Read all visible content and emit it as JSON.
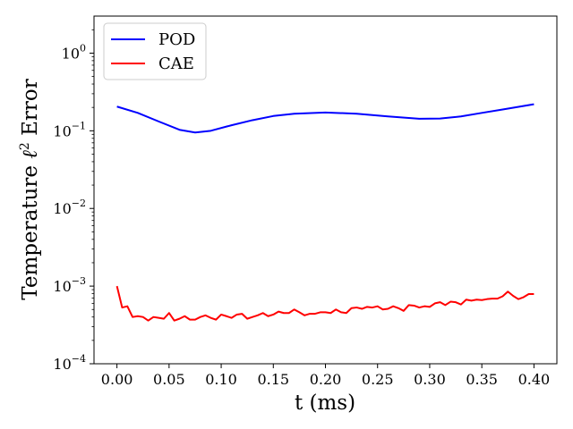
{
  "chart_data": {
    "type": "line",
    "xlabel": "t (ms)",
    "ylabel_parts": [
      "Temperature ",
      "ℓ",
      "2",
      " Error"
    ],
    "xlim": [
      -0.022,
      0.422
    ],
    "ylim": [
      0.0001,
      3.0
    ],
    "yscale": "log",
    "xticks": [
      0.0,
      0.05,
      0.1,
      0.15,
      0.2,
      0.25,
      0.3,
      0.35,
      0.4
    ],
    "xtick_labels": [
      "0.00",
      "0.05",
      "0.10",
      "0.15",
      "0.20",
      "0.25",
      "0.30",
      "0.35",
      "0.40"
    ],
    "yticks": [
      {
        "value": 0.0001,
        "base": "10",
        "exp": "−4"
      },
      {
        "value": 0.001,
        "base": "10",
        "exp": "−3"
      },
      {
        "value": 0.01,
        "base": "10",
        "exp": "−2"
      },
      {
        "value": 0.1,
        "base": "10",
        "exp": "−1"
      },
      {
        "value": 1,
        "base": "10",
        "exp": "0"
      }
    ],
    "grid": false,
    "legend_position": "top-left",
    "series": [
      {
        "name": "POD",
        "color": "#0000ff",
        "x": [
          0.0,
          0.02,
          0.04,
          0.06,
          0.075,
          0.09,
          0.11,
          0.13,
          0.15,
          0.17,
          0.2,
          0.23,
          0.26,
          0.29,
          0.31,
          0.33,
          0.35,
          0.37,
          0.4
        ],
        "y": [
          0.205,
          0.17,
          0.132,
          0.103,
          0.095,
          0.1,
          0.118,
          0.137,
          0.155,
          0.166,
          0.172,
          0.166,
          0.153,
          0.143,
          0.144,
          0.153,
          0.17,
          0.188,
          0.22
        ]
      },
      {
        "name": "CAE",
        "color": "#ff0000",
        "x": [
          0.0,
          0.005,
          0.01,
          0.015,
          0.02,
          0.025,
          0.03,
          0.035,
          0.04,
          0.045,
          0.05,
          0.055,
          0.06,
          0.065,
          0.07,
          0.075,
          0.08,
          0.085,
          0.09,
          0.095,
          0.1,
          0.105,
          0.11,
          0.115,
          0.12,
          0.125,
          0.13,
          0.135,
          0.14,
          0.145,
          0.15,
          0.155,
          0.16,
          0.165,
          0.17,
          0.175,
          0.18,
          0.185,
          0.19,
          0.195,
          0.2,
          0.205,
          0.21,
          0.215,
          0.22,
          0.225,
          0.23,
          0.235,
          0.24,
          0.245,
          0.25,
          0.255,
          0.26,
          0.265,
          0.27,
          0.275,
          0.28,
          0.285,
          0.29,
          0.295,
          0.3,
          0.305,
          0.31,
          0.315,
          0.32,
          0.325,
          0.33,
          0.335,
          0.34,
          0.345,
          0.35,
          0.355,
          0.36,
          0.365,
          0.37,
          0.375,
          0.38,
          0.385,
          0.39,
          0.395,
          0.4
        ],
        "y": [
          0.001,
          0.00053,
          0.00055,
          0.0004,
          0.00041,
          0.0004,
          0.00036,
          0.0004,
          0.00039,
          0.00038,
          0.00045,
          0.00036,
          0.00038,
          0.00041,
          0.00037,
          0.00037,
          0.0004,
          0.00042,
          0.00039,
          0.00037,
          0.00043,
          0.00041,
          0.00039,
          0.00043,
          0.00044,
          0.00038,
          0.0004,
          0.00042,
          0.00045,
          0.00041,
          0.00043,
          0.00047,
          0.00045,
          0.00045,
          0.0005,
          0.00046,
          0.00042,
          0.00044,
          0.00044,
          0.00046,
          0.00046,
          0.00045,
          0.0005,
          0.00046,
          0.00045,
          0.00052,
          0.00053,
          0.00051,
          0.00054,
          0.00053,
          0.00055,
          0.0005,
          0.00051,
          0.00055,
          0.00052,
          0.00048,
          0.00057,
          0.00056,
          0.00053,
          0.00055,
          0.00054,
          0.0006,
          0.00062,
          0.00057,
          0.00063,
          0.00062,
          0.00058,
          0.00067,
          0.00065,
          0.00067,
          0.00066,
          0.00068,
          0.00069,
          0.00069,
          0.00074,
          0.00085,
          0.00075,
          0.00068,
          0.00072,
          0.00079,
          0.00079
        ]
      }
    ]
  }
}
